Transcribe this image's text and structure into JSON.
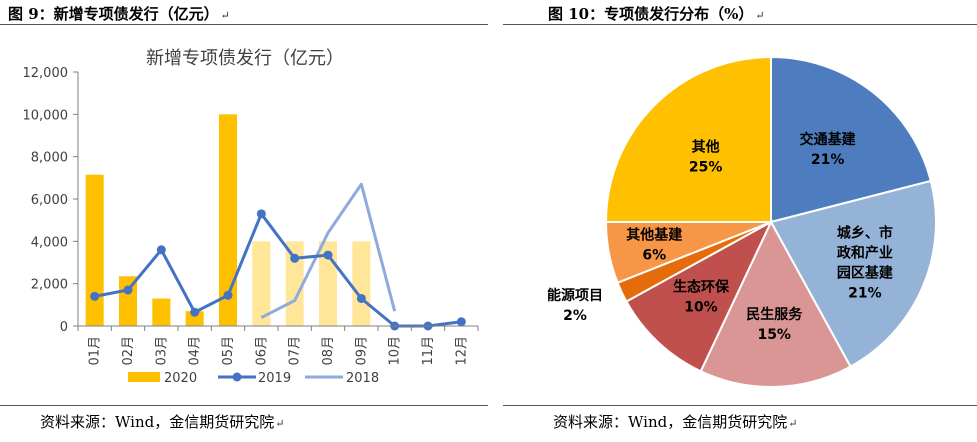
{
  "left_figure": {
    "title": "图 9：新增专项债发行（亿元）",
    "source": "资料来源：Wind，金信期货研究院"
  },
  "right_figure": {
    "title": "图 10：专项债发行分布（%）",
    "source": "资料来源：Wind，金信期货研究院"
  },
  "colors": {
    "bar_2020": "#ffc000",
    "bar_2020_light": "#ffe699",
    "line_2019": "#4472c4",
    "line_2018": "#8faadc",
    "transport": "#4e7dbf",
    "urban": "#95b3d7",
    "livelihood": "#da9694",
    "ecology": "#c0504d",
    "energy": "#e46c0a",
    "other_infra": "#f79646",
    "other": "#ffc000"
  },
  "chart_data": [
    {
      "type": "bar",
      "title": "新增专项债发行（亿元）",
      "categories": [
        "01月",
        "02月",
        "03月",
        "04月",
        "05月",
        "06月",
        "07月",
        "08月",
        "09月",
        "10月",
        "11月",
        "12月"
      ],
      "ylim": [
        0,
        12000
      ],
      "yticks": [
        0,
        2000,
        4000,
        6000,
        8000,
        10000,
        12000
      ],
      "ytick_labels": [
        "0",
        "2,000",
        "4,000",
        "6,000",
        "8,000",
        "10,000",
        "12,000"
      ],
      "legend_position": "bottom",
      "series": [
        {
          "name": "2020",
          "kind": "bar",
          "values": [
            7150,
            2350,
            1300,
            700,
            10000,
            4000,
            4000,
            4000,
            4000,
            null,
            null,
            null
          ],
          "light_from_index": 5
        },
        {
          "name": "2019",
          "kind": "line",
          "values": [
            1400,
            1700,
            3600,
            650,
            1450,
            5300,
            3200,
            3350,
            1300,
            0,
            0,
            200
          ]
        },
        {
          "name": "2018",
          "kind": "line",
          "values": [
            null,
            null,
            null,
            null,
            null,
            400,
            1200,
            4400,
            6700,
            700,
            null,
            null
          ]
        }
      ]
    },
    {
      "type": "pie",
      "slices": [
        {
          "label": "交通基建",
          "value": 21,
          "value_label": "21%",
          "color_key": "transport"
        },
        {
          "label": "城乡、市政和产业园区基建",
          "value": 21,
          "value_label": "21%",
          "color_key": "urban",
          "label_lines": [
            "城乡、市",
            "政和产业",
            "园区基建"
          ]
        },
        {
          "label": "民生服务",
          "value": 15,
          "value_label": "15%",
          "color_key": "livelihood"
        },
        {
          "label": "生态环保",
          "value": 10,
          "value_label": "10%",
          "color_key": "ecology"
        },
        {
          "label": "能源项目",
          "value": 2,
          "value_label": "2%",
          "color_key": "energy"
        },
        {
          "label": "其他基建",
          "value": 6,
          "value_label": "6%",
          "color_key": "other_infra"
        },
        {
          "label": "其他",
          "value": 25,
          "value_label": "25%",
          "color_key": "other"
        }
      ]
    }
  ]
}
